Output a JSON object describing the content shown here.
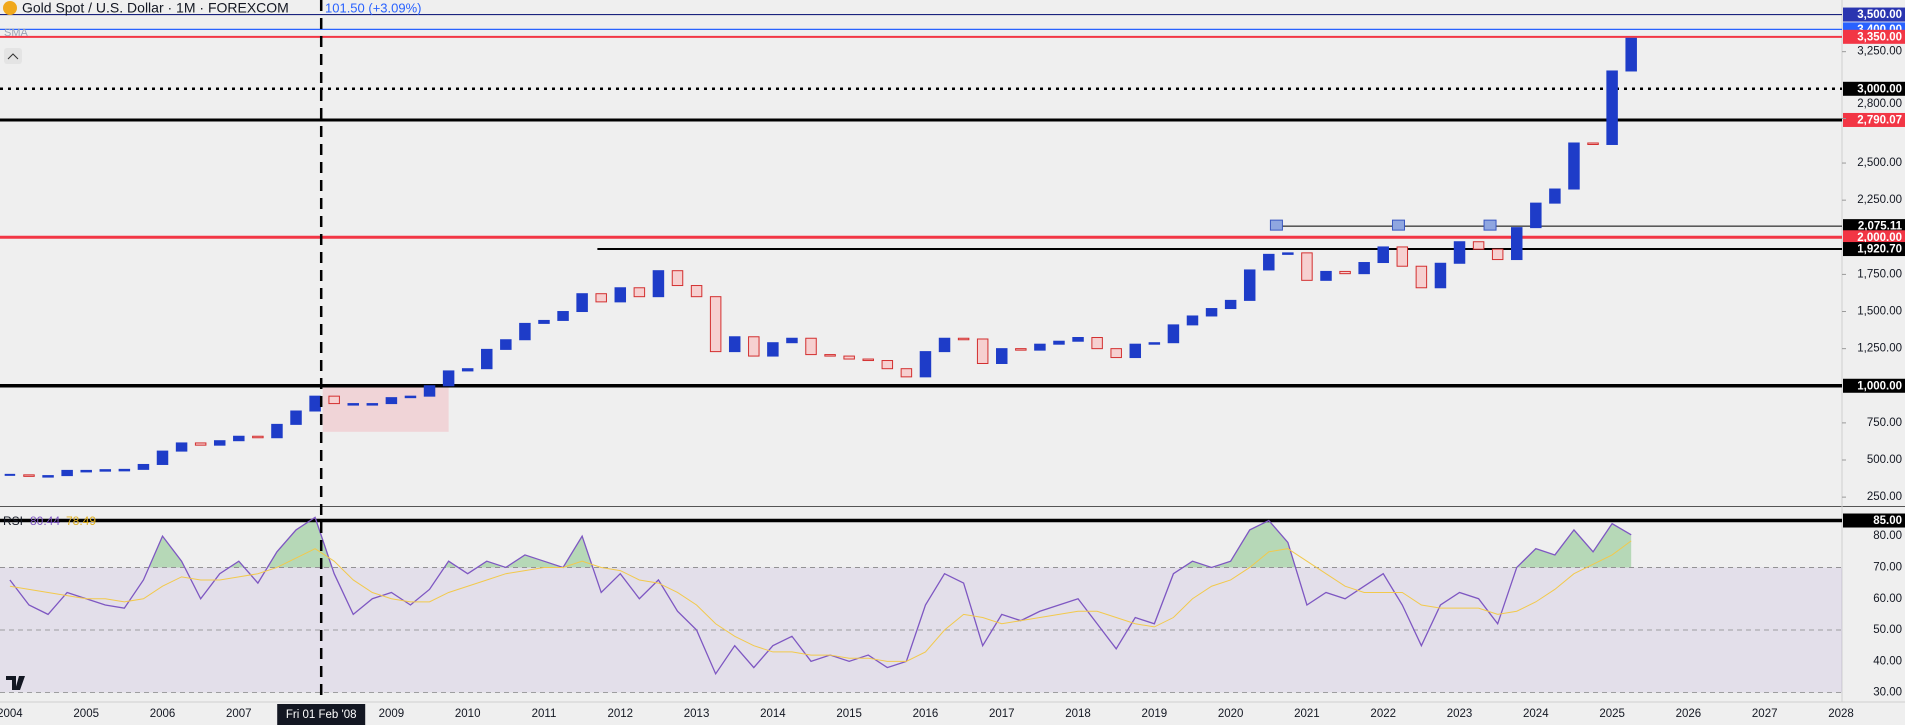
{
  "chart_data": [
    {
      "type": "candlestick",
      "title": "Gold Spot / U.S. Dollar · 1M · FOREXCOM",
      "change_label": "101.50 (+3.09%)",
      "indicator": "SMA",
      "up_color": "#1e3cc8",
      "down_color": "#d32f2f",
      "x": [
        2004,
        2004.25,
        2004.5,
        2004.75,
        2005,
        2005.25,
        2005.5,
        2005.75,
        2006,
        2006.25,
        2006.5,
        2006.75,
        2007,
        2007.25,
        2007.5,
        2007.75,
        2008,
        2008.25,
        2008.5,
        2008.75,
        2009,
        2009.25,
        2009.5,
        2009.75,
        2010,
        2010.25,
        2010.5,
        2010.75,
        2011,
        2011.25,
        2011.5,
        2011.75,
        2012,
        2012.25,
        2012.5,
        2012.75,
        2013,
        2013.25,
        2013.5,
        2013.75,
        2014,
        2014.25,
        2014.5,
        2014.75,
        2015,
        2015.25,
        2015.5,
        2015.75,
        2016,
        2016.25,
        2016.5,
        2016.75,
        2017,
        2017.25,
        2017.5,
        2017.75,
        2018,
        2018.25,
        2018.5,
        2018.75,
        2019,
        2019.25,
        2019.5,
        2019.75,
        2020,
        2020.25,
        2020.5,
        2020.75,
        2021,
        2021.25,
        2021.5,
        2021.75,
        2022,
        2022.25,
        2022.5,
        2022.75,
        2023,
        2023.25,
        2023.5,
        2023.75,
        2024,
        2024.25,
        2024.5,
        2024.75,
        2025,
        2025.25
      ],
      "close": [
        400,
        390,
        395,
        430,
        430,
        435,
        437,
        470,
        560,
        615,
        600,
        630,
        660,
        650,
        740,
        830,
        930,
        880,
        880,
        880,
        920,
        930,
        1000,
        1100,
        1115,
        1245,
        1310,
        1420,
        1440,
        1500,
        1620,
        1565,
        1660,
        1600,
        1775,
        1675,
        1600,
        1230,
        1330,
        1200,
        1290,
        1320,
        1210,
        1200,
        1180,
        1170,
        1115,
        1060,
        1230,
        1320,
        1315,
        1150,
        1250,
        1240,
        1280,
        1300,
        1325,
        1250,
        1190,
        1280,
        1290,
        1410,
        1470,
        1520,
        1575,
        1780,
        1885,
        1895,
        1710,
        1770,
        1755,
        1830,
        1935,
        1805,
        1660,
        1825,
        1970,
        1920,
        1850,
        2065,
        2230,
        2325,
        2635,
        2625,
        3120,
        3340
      ],
      "xlim": [
        2003.87,
        2028
      ],
      "xticks": [
        2004,
        2005,
        2006,
        2007,
        2009,
        2010,
        2011,
        2012,
        2013,
        2014,
        2015,
        2016,
        2017,
        2018,
        2019,
        2020,
        2021,
        2022,
        2023,
        2024,
        2025,
        2026,
        2027,
        2028
      ],
      "crosshair": {
        "value": 2008.08,
        "label": "Fri 01 Feb '08"
      },
      "ylim": [
        197,
        3598
      ],
      "yticks": [
        {
          "value": 3250,
          "label": "3,250.00"
        },
        {
          "value": 2800,
          "label": "2,800.00"
        },
        {
          "value": 2500,
          "label": "2,500.00"
        },
        {
          "value": 2250,
          "label": "2,250.00"
        },
        {
          "value": 1750,
          "label": "1,750.00"
        },
        {
          "value": 1500,
          "label": "1,500.00"
        },
        {
          "value": 1250,
          "label": "1,250.00"
        },
        {
          "value": 750,
          "label": "750.00"
        },
        {
          "value": 500,
          "label": "500.00"
        },
        {
          "value": 250,
          "label": "250.00"
        }
      ],
      "levels": [
        {
          "value": 3500,
          "label": "3,500.00",
          "color": "#1a237e",
          "label_color": "#2a35b0",
          "width": 1.2,
          "dash": "none",
          "start": 2003.87
        },
        {
          "value": 3400,
          "label": "3,400.00",
          "color": "#2962ff",
          "label_color": "#2962ff",
          "width": 1.2,
          "dash": "none",
          "start": 2003.87
        },
        {
          "value": 3350,
          "label": "3,350.00",
          "color": "#f23645",
          "label_color": "#f23645",
          "width": 2,
          "dash": "none",
          "start": 2003.87
        },
        {
          "value": 3000,
          "label": "3,000.00",
          "color": "#000000",
          "label_color": "#000000",
          "width": 2.5,
          "dash": "3 5",
          "start": 2003.87
        },
        {
          "value": 2790.07,
          "label": "2,790.07",
          "color": "#000000",
          "label_color": "#f23645",
          "width": 3,
          "dash": "none",
          "start": 2003.87
        },
        {
          "value": 2075.11,
          "label": "2,075.11",
          "color": "#000000",
          "label_color": "#000000",
          "width": 1,
          "dash": "none",
          "start": 2020.6
        },
        {
          "value": 2000,
          "label": "2,000.00",
          "color": "#f23645",
          "label_color": "#f23645",
          "width": 3,
          "dash": "none",
          "start": 2003.87
        },
        {
          "value": 1920.7,
          "label": "1,920.70",
          "color": "#000000",
          "label_color": "#000000",
          "width": 2,
          "dash": "none",
          "start": 2011.7
        },
        {
          "value": 1000,
          "label": "1,000.00",
          "color": "#000000",
          "label_color": "#000000",
          "width": 3.5,
          "dash": "none",
          "start": 2003.87
        }
      ],
      "zone": {
        "x": [
          2008.1,
          2009.75
        ],
        "y": [
          690,
          1010
        ],
        "color": "rgba(242,150,160,0.3)"
      },
      "markers": {
        "x": [
          2020.6,
          2022.2,
          2023.4
        ],
        "y": 2075.11,
        "color": "#8fa6e0"
      }
    },
    {
      "type": "line",
      "title": "RSI",
      "series": [
        {
          "color": "#7e57c2",
          "values": [
            66,
            58,
            55,
            62,
            60,
            58,
            57,
            66,
            80,
            72,
            60,
            68,
            72,
            65,
            75,
            82,
            86,
            68,
            55,
            60,
            62,
            58,
            63,
            72,
            68,
            72,
            70,
            74,
            72,
            70,
            80,
            62,
            68,
            60,
            66,
            56,
            50,
            36,
            45,
            38,
            45,
            48,
            40,
            42,
            40,
            42,
            38,
            40,
            58,
            68,
            65,
            45,
            55,
            53,
            56,
            58,
            60,
            52,
            44,
            54,
            52,
            68,
            72,
            70,
            72,
            82,
            85,
            78,
            58,
            62,
            60,
            64,
            68,
            58,
            45,
            58,
            62,
            60,
            52,
            70,
            76,
            74,
            82,
            75,
            84,
            80.44
          ]
        },
        {
          "color": "#f2c94c",
          "values": [
            64,
            63,
            62,
            61,
            60,
            60,
            59,
            60,
            64,
            67,
            66,
            66,
            67,
            68,
            70,
            73,
            76,
            72,
            66,
            62,
            60,
            59,
            59,
            62,
            64,
            66,
            68,
            69,
            70,
            70,
            72,
            70,
            69,
            66,
            65,
            62,
            58,
            52,
            48,
            45,
            43,
            43,
            42,
            42,
            41,
            41,
            40,
            40,
            43,
            50,
            55,
            54,
            52,
            53,
            54,
            55,
            56,
            56,
            54,
            52,
            51,
            54,
            60,
            64,
            66,
            70,
            75,
            76,
            72,
            68,
            64,
            62,
            62,
            62,
            58,
            57,
            57,
            57,
            55,
            56,
            59,
            63,
            68,
            71,
            74,
            78.49
          ]
        }
      ],
      "ylim": [
        27,
        89
      ],
      "yticks": [
        {
          "value": 80,
          "label": "80.00"
        },
        {
          "value": 70,
          "label": "70.00"
        },
        {
          "value": 60,
          "label": "60.00"
        },
        {
          "value": 50,
          "label": "50.00"
        },
        {
          "value": 40,
          "label": "40.00"
        },
        {
          "value": 30,
          "label": "30.00"
        }
      ],
      "band": [
        30,
        70
      ],
      "level": {
        "value": 85,
        "label": "85.00"
      }
    }
  ]
}
